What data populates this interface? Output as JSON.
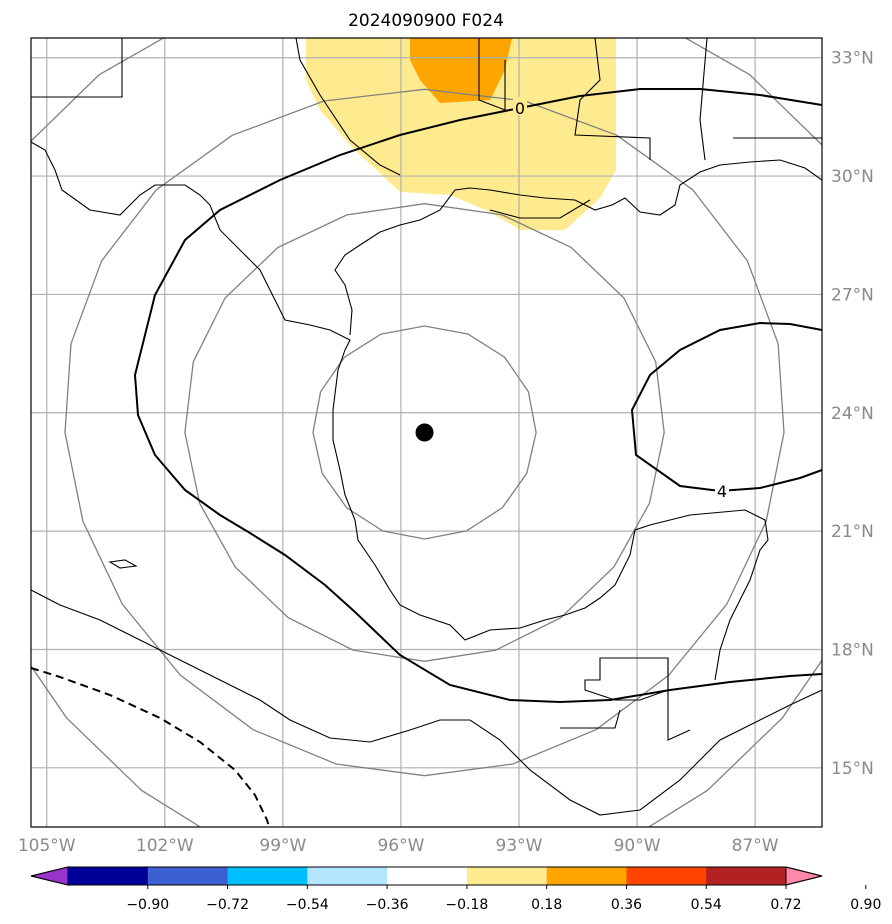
{
  "title": "2024090900 F024",
  "map": {
    "lon_range": [
      -105.4,
      -85.3
    ],
    "lat_range": [
      13.5,
      33.5
    ],
    "lon_ticks": [
      {
        "value": -105,
        "label": "105°W"
      },
      {
        "value": -102,
        "label": "102°W"
      },
      {
        "value": -99,
        "label": "99°W"
      },
      {
        "value": -96,
        "label": "96°W"
      },
      {
        "value": -93,
        "label": "93°W"
      },
      {
        "value": -90,
        "label": "90°W"
      },
      {
        "value": -87,
        "label": "87°W"
      }
    ],
    "lat_ticks": [
      {
        "value": 33,
        "label": "33°N"
      },
      {
        "value": 30,
        "label": "30°N"
      },
      {
        "value": 27,
        "label": "27°N"
      },
      {
        "value": 24,
        "label": "24°N"
      },
      {
        "value": 21,
        "label": "21°N"
      },
      {
        "value": 18,
        "label": "18°N"
      },
      {
        "value": 15,
        "label": "15°N"
      }
    ],
    "storm_center": {
      "lon": -95.4,
      "lat": 23.5
    },
    "range_rings_deg": [
      2.7,
      5.8,
      8.7,
      11.6
    ],
    "contour_labels": [
      "0",
      "4"
    ]
  },
  "colorbar": {
    "colors": [
      "#9933cc",
      "#000099",
      "#3c5fd1",
      "#00bfff",
      "#b3e6ff",
      "#ffffff",
      "#ffeb8f",
      "#ffa500",
      "#ff4500",
      "#b22222",
      "#ff88aa"
    ],
    "ticks": [
      "−0.90",
      "−0.72",
      "−0.54",
      "−0.36",
      "−0.18",
      "0.18",
      "0.36",
      "0.54",
      "0.72",
      "0.90"
    ]
  }
}
